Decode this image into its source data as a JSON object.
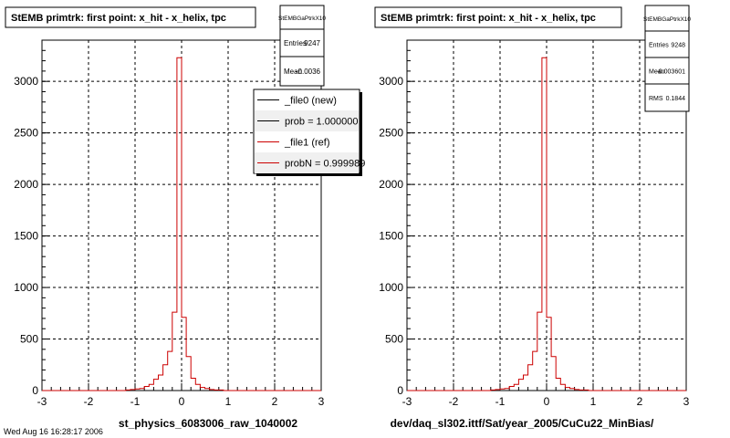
{
  "colors": {
    "background": "#ffffff",
    "frame": "#000000",
    "grid": "#000000",
    "new_file_line": "#000000",
    "ref_file_line": "#cc0000",
    "shadow": "#000000"
  },
  "footer_text": "Wed Aug 16 16:28:17 2006",
  "panels": [
    {
      "title": "StEMB primtrk: first point: x_hit - x_helix, tpc",
      "xlabel": "st_physics_6083006_raw_1040002",
      "stats": {
        "name": "StEMBGaPtrkX10",
        "rows": [
          {
            "label": "Entries",
            "value": "9247"
          },
          {
            "label": "Mean",
            "value": "-0.0036"
          }
        ]
      },
      "legend": {
        "entries": [
          {
            "label": "_file0 (new)",
            "color": "#000000"
          },
          {
            "label": "prob = 1.000000",
            "color": "#000000"
          },
          {
            "label": "_file1 (ref)",
            "color": "#cc0000"
          },
          {
            "label": "probN = 0.999989",
            "color": "#cc0000"
          }
        ]
      }
    },
    {
      "title": "StEMB primtrk: first point: x_hit - x_helix, tpc",
      "xlabel": "dev/daq_sl302.ittf/Sat/year_2005/CuCu22_MinBias/",
      "stats": {
        "name": "StEMBGaPtrkX10",
        "rows": [
          {
            "label": "Entries",
            "value": "9248"
          },
          {
            "label": "Mean",
            "value": "-0.003601"
          },
          {
            "label": "RMS",
            "value": "0.1844"
          }
        ]
      }
    }
  ],
  "chart_data": [
    {
      "type": "bar",
      "title": "StEMB primtrk: first point: x_hit - x_helix, tpc",
      "xlabel": "st_physics_6083006_raw_1040002",
      "ylabel": "",
      "xlim": [
        -3,
        3
      ],
      "ylim": [
        0,
        3400
      ],
      "x_ticks": [
        -3,
        -2,
        -1,
        0,
        1,
        2,
        3
      ],
      "y_ticks": [
        0,
        500,
        1000,
        1500,
        2000,
        2500,
        3000
      ],
      "grid": true,
      "legend_position": "top-right",
      "bin_width": 0.1,
      "series": [
        {
          "name": "_file1 (ref)",
          "bin_low_edges": [
            -3.0,
            -2.9,
            -2.8,
            -2.7,
            -2.6,
            -2.5,
            -2.4,
            -2.3,
            -2.2,
            -2.1,
            -2.0,
            -1.9,
            -1.8,
            -1.7,
            -1.6,
            -1.5,
            -1.4,
            -1.3,
            -1.2,
            -1.1,
            -1.0,
            -0.9,
            -0.8,
            -0.7,
            -0.6,
            -0.5,
            -0.4,
            -0.3,
            -0.2,
            -0.1,
            0.0,
            0.1,
            0.2,
            0.3,
            0.4,
            0.5,
            0.6,
            0.7,
            0.8,
            0.9,
            1.0,
            1.1,
            1.2,
            1.3,
            1.4,
            1.5,
            1.6,
            1.7,
            1.8,
            1.9,
            2.0,
            2.1,
            2.2,
            2.3,
            2.4,
            2.5,
            2.6,
            2.7,
            2.8,
            2.9
          ],
          "values": [
            0,
            0,
            0,
            0,
            0,
            0,
            0,
            0,
            0,
            0,
            0,
            0,
            0,
            0,
            0,
            0,
            0,
            0,
            5,
            10,
            15,
            20,
            40,
            60,
            110,
            150,
            250,
            380,
            760,
            3230,
            710,
            330,
            120,
            60,
            30,
            20,
            10,
            5,
            5,
            0,
            0,
            0,
            0,
            0,
            0,
            0,
            0,
            0,
            0,
            0,
            0,
            0,
            0,
            0,
            0,
            0,
            0,
            0,
            0,
            0
          ]
        }
      ]
    },
    {
      "type": "bar",
      "title": "StEMB primtrk: first point: x_hit - x_helix, tpc",
      "xlabel": "dev/daq_sl302.ittf/Sat/year_2005/CuCu22_MinBias/",
      "ylabel": "",
      "xlim": [
        -3,
        3
      ],
      "ylim": [
        0,
        3400
      ],
      "x_ticks": [
        -3,
        -2,
        -1,
        0,
        1,
        2,
        3
      ],
      "y_ticks": [
        0,
        500,
        1000,
        1500,
        2000,
        2500,
        3000
      ],
      "grid": true,
      "bin_width": 0.1,
      "series": [
        {
          "name": "",
          "bin_low_edges": [
            -3.0,
            -2.9,
            -2.8,
            -2.7,
            -2.6,
            -2.5,
            -2.4,
            -2.3,
            -2.2,
            -2.1,
            -2.0,
            -1.9,
            -1.8,
            -1.7,
            -1.6,
            -1.5,
            -1.4,
            -1.3,
            -1.2,
            -1.1,
            -1.0,
            -0.9,
            -0.8,
            -0.7,
            -0.6,
            -0.5,
            -0.4,
            -0.3,
            -0.2,
            -0.1,
            0.0,
            0.1,
            0.2,
            0.3,
            0.4,
            0.5,
            0.6,
            0.7,
            0.8,
            0.9,
            1.0,
            1.1,
            1.2,
            1.3,
            1.4,
            1.5,
            1.6,
            1.7,
            1.8,
            1.9,
            2.0,
            2.1,
            2.2,
            2.3,
            2.4,
            2.5,
            2.6,
            2.7,
            2.8,
            2.9
          ],
          "values": [
            0,
            0,
            0,
            0,
            0,
            0,
            0,
            0,
            0,
            0,
            0,
            0,
            0,
            0,
            0,
            0,
            0,
            0,
            5,
            10,
            15,
            20,
            40,
            60,
            110,
            150,
            250,
            380,
            760,
            3230,
            710,
            330,
            120,
            60,
            30,
            20,
            10,
            5,
            5,
            0,
            0,
            0,
            0,
            0,
            0,
            0,
            0,
            0,
            0,
            0,
            0,
            0,
            0,
            0,
            0,
            0,
            0,
            0,
            0,
            0
          ]
        }
      ]
    }
  ]
}
